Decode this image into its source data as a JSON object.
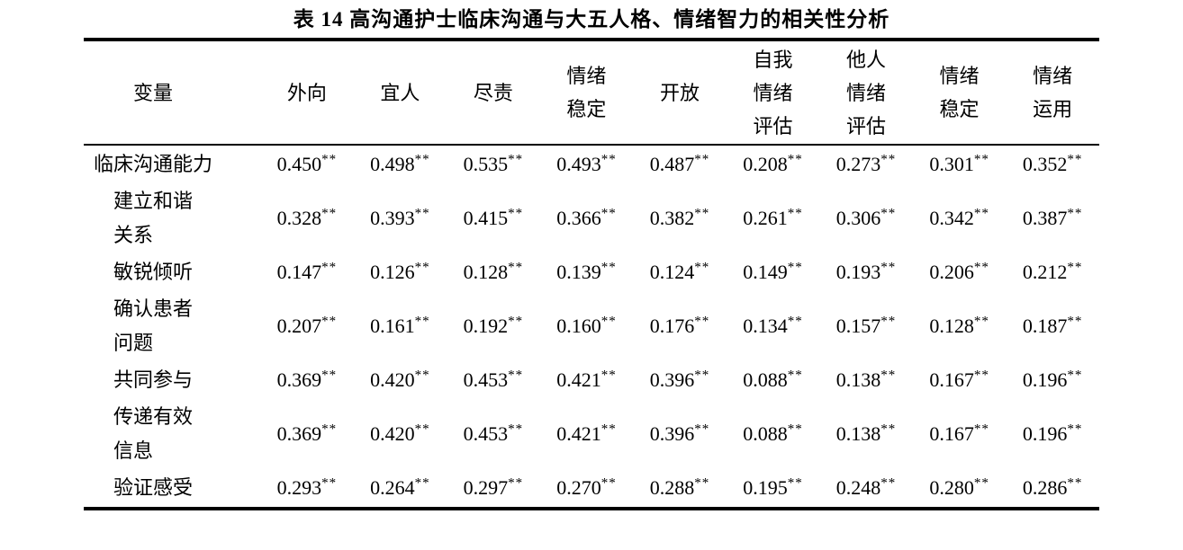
{
  "title": "表 14 高沟通护士临床沟通与大五人格、情绪智力的相关性分析",
  "significance_marker": "**",
  "table": {
    "columns": [
      "变量",
      "外向",
      "宜人",
      "尽责",
      "情绪\n稳定",
      "开放",
      "自我\n情绪\n评估",
      "他人\n情绪\n评估",
      "情绪\n稳定",
      "情绪\n运用"
    ],
    "rows": [
      {
        "label": "临床沟通能力",
        "values": [
          "0.450",
          "0.498",
          "0.535",
          "0.493",
          "0.487",
          "0.208",
          "0.273",
          "0.301",
          "0.352"
        ]
      },
      {
        "label": "建立和谐\n关系",
        "values": [
          "0.328",
          "0.393",
          "0.415",
          "0.366",
          "0.382",
          "0.261",
          "0.306",
          "0.342",
          "0.387"
        ]
      },
      {
        "label": "敏锐倾听",
        "values": [
          "0.147",
          "0.126",
          "0.128",
          "0.139",
          "0.124",
          "0.149",
          "0.193",
          "0.206",
          "0.212"
        ]
      },
      {
        "label": "确认患者\n问题",
        "values": [
          "0.207",
          "0.161",
          "0.192",
          "0.160",
          "0.176",
          "0.134",
          "0.157",
          "0.128",
          "0.187"
        ]
      },
      {
        "label": "共同参与",
        "values": [
          "0.369",
          "0.420",
          "0.453",
          "0.421",
          "0.396",
          "0.088",
          "0.138",
          "0.167",
          "0.196"
        ]
      },
      {
        "label": "传递有效\n信息",
        "values": [
          "0.369",
          "0.420",
          "0.453",
          "0.421",
          "0.396",
          "0.088",
          "0.138",
          "0.167",
          "0.196"
        ]
      },
      {
        "label": "验证感受",
        "values": [
          "0.293",
          "0.264",
          "0.297",
          "0.270",
          "0.288",
          "0.195",
          "0.248",
          "0.280",
          "0.286"
        ]
      }
    ]
  }
}
